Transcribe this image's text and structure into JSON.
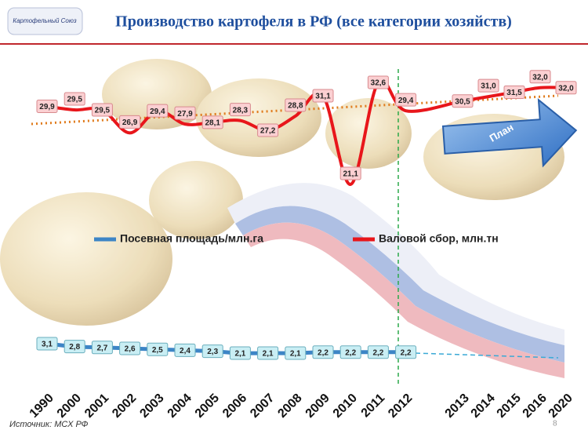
{
  "chart_data": {
    "type": "line",
    "title": "Производство картофеля в РФ (все категории хозяйств)",
    "categories": [
      "1990",
      "2000",
      "2001",
      "2002",
      "2003",
      "2004",
      "2005",
      "2006",
      "2007",
      "2008",
      "2009",
      "2010",
      "2011",
      "2012",
      "2013",
      "2014",
      "2015",
      "2016",
      "2020"
    ],
    "series": [
      {
        "name": "Посевная площадь/млн.га",
        "color": "#3d85c6",
        "values": [
          3.1,
          2.8,
          2.7,
          2.6,
          2.5,
          2.4,
          2.3,
          2.1,
          2.1,
          2.1,
          2.2,
          2.2,
          2.2,
          2.2,
          null,
          null,
          null,
          null,
          null
        ],
        "value_labels": [
          "3,1",
          "2,8",
          "2,7",
          "2,6",
          "2,5",
          "2,4",
          "2,3",
          "2,1",
          "2,1",
          "2,1",
          "2,2",
          "2,2",
          "2,2",
          "2,2",
          null,
          null,
          null,
          null,
          null
        ]
      },
      {
        "name": "Валовой сбор, млн.тн",
        "color": "#e8161b",
        "values": [
          29.9,
          29.5,
          29.5,
          26.9,
          29.4,
          27.9,
          28.1,
          28.3,
          27.2,
          28.8,
          31.1,
          21.1,
          32.6,
          29.4,
          30.5,
          31.0,
          31.5,
          32.0,
          32.0
        ],
        "value_labels": [
          "29,9",
          "29,5",
          "29,5",
          "26,9",
          "29,4",
          "27,9",
          "28,1",
          "28,3",
          "27,2",
          "28,8",
          "31,1",
          "21,1",
          "32,6",
          "29,4",
          "30,5",
          "31,0",
          "31,5",
          "32,0",
          "32,0"
        ]
      }
    ],
    "annotations": [
      "План"
    ]
  },
  "slide": {
    "logo": "Картофельный Союз",
    "source": "Источник: МСХ РФ",
    "page_number": 8
  }
}
